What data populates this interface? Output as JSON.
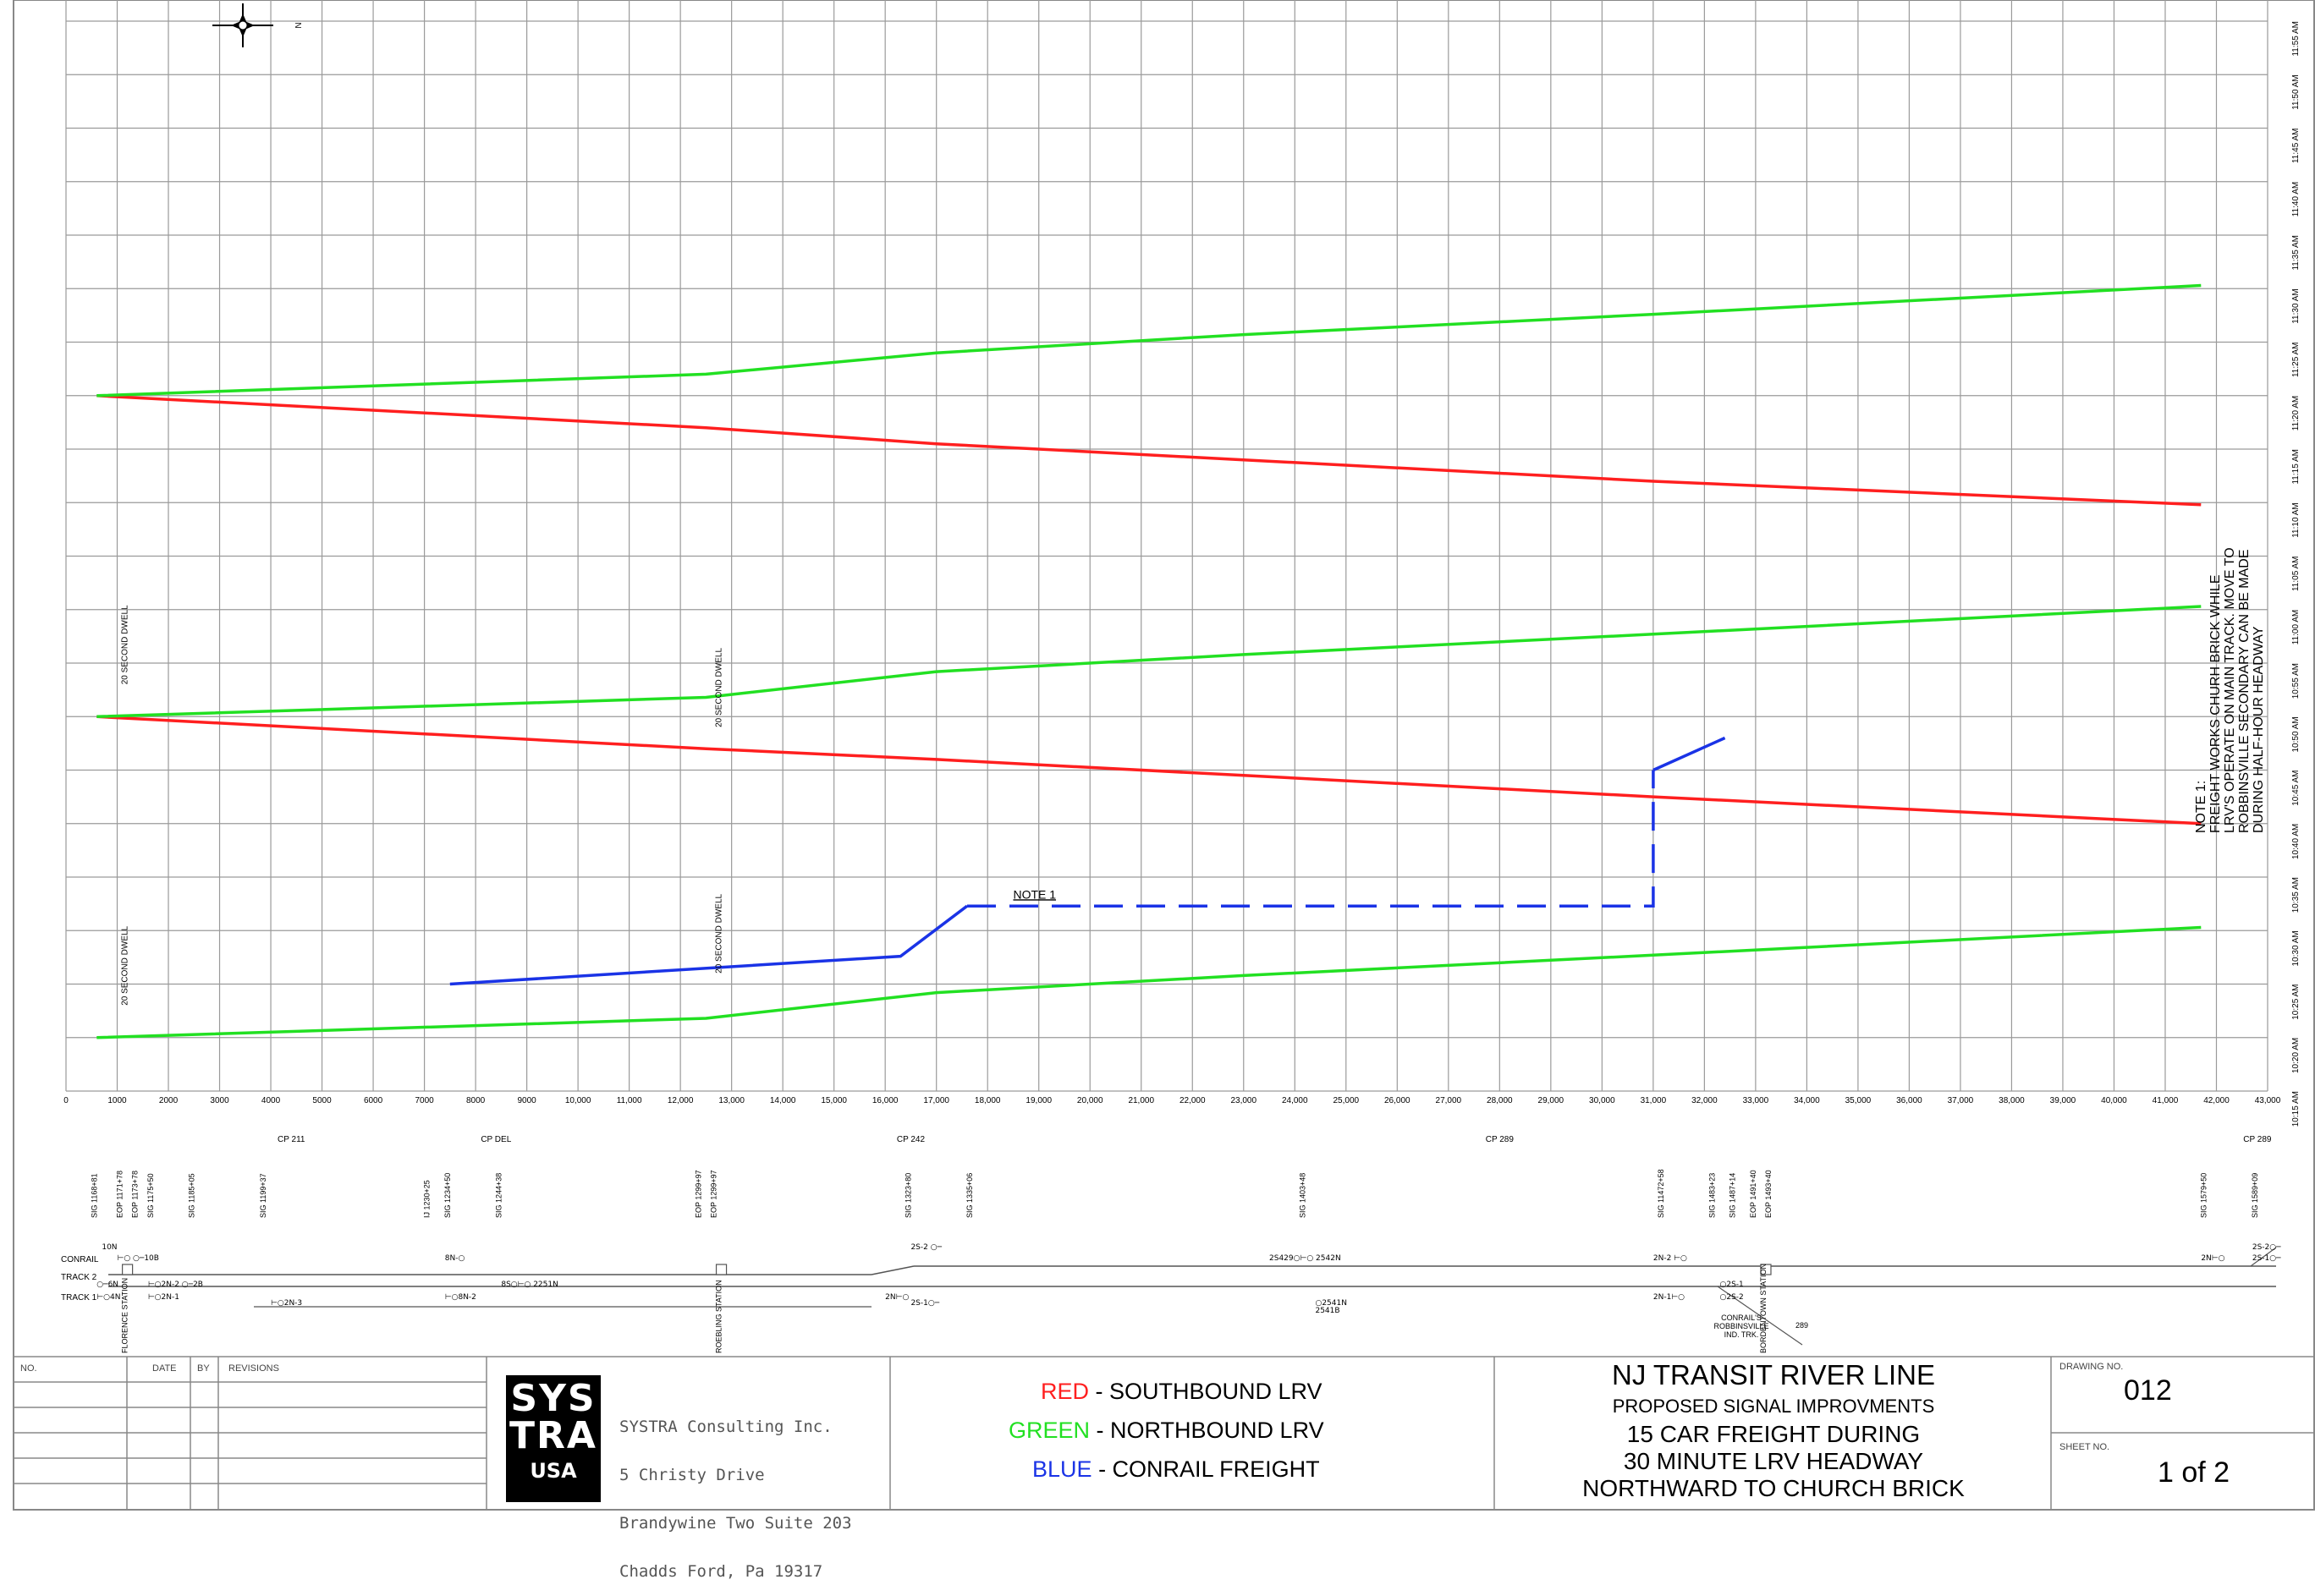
{
  "chart_data": {
    "type": "line",
    "title": "",
    "x_ticks": [
      "0",
      "1000",
      "2000",
      "3000",
      "4000",
      "5000",
      "6000",
      "7000",
      "8000",
      "9000",
      "10,000",
      "11,000",
      "12,000",
      "13,000",
      "14,000",
      "15,000",
      "16,000",
      "17,000",
      "18,000",
      "19,000",
      "20,000",
      "21,000",
      "22,000",
      "23,000",
      "24,000",
      "25,000",
      "26,000",
      "27,000",
      "28,000",
      "29,000",
      "30,000",
      "31,000",
      "32,000",
      "33,000",
      "34,000",
      "35,000",
      "36,000",
      "37,000",
      "38,000",
      "39,000",
      "40,000",
      "41,000",
      "42,000",
      "43,000"
    ],
    "y_ticks": [
      "10:15 AM",
      "10:20 AM",
      "10:25 AM",
      "10:30 AM",
      "10:35 AM",
      "10:40 AM",
      "10:45 AM",
      "10:50 AM",
      "10:55 AM",
      "11:00 AM",
      "11:05 AM",
      "11:10 AM",
      "11:15 AM",
      "11:20 AM",
      "11:25 AM",
      "11:30 AM",
      "11:35 AM",
      "11:40 AM",
      "11:45 AM",
      "11:50 AM",
      "11:55 AM"
    ],
    "xlim": [
      0,
      43000
    ],
    "y_minutes_range": [
      0,
      100
    ],
    "series": [
      {
        "name": "SOUTHBOUND LRV",
        "color": "#ff1f1f",
        "points": [
          [
            600,
            65
          ],
          [
            12500,
            62
          ],
          [
            17000,
            60.5
          ],
          [
            23000,
            59
          ],
          [
            31000,
            57
          ],
          [
            41700,
            54.8
          ]
        ]
      },
      {
        "name": "SOUTHBOUND LRV",
        "color": "#ff1f1f",
        "points": [
          [
            600,
            35
          ],
          [
            12500,
            32
          ],
          [
            17000,
            31
          ],
          [
            23000,
            29.5
          ],
          [
            31000,
            27.5
          ],
          [
            41700,
            25
          ]
        ]
      },
      {
        "name": "NORTHBOUND LRV",
        "color": "#22e022",
        "points": [
          [
            600,
            65
          ],
          [
            12500,
            67
          ],
          [
            17000,
            69
          ],
          [
            23000,
            70.7
          ],
          [
            31000,
            72.6
          ],
          [
            41700,
            75.3
          ]
        ]
      },
      {
        "name": "NORTHBOUND LRV",
        "color": "#22e022",
        "points": [
          [
            600,
            35
          ],
          [
            12500,
            36.8
          ],
          [
            17000,
            39.2
          ],
          [
            23000,
            40.8
          ],
          [
            31000,
            42.7
          ],
          [
            41700,
            45.3
          ]
        ]
      },
      {
        "name": "NORTHBOUND LRV",
        "color": "#22e022",
        "points": [
          [
            600,
            5
          ],
          [
            12500,
            6.8
          ],
          [
            17000,
            9.2
          ],
          [
            23000,
            10.8
          ],
          [
            31000,
            12.7
          ],
          [
            41700,
            15.3
          ]
        ]
      },
      {
        "name": "CONRAIL FREIGHT",
        "color": "#1a33e6",
        "points": [
          [
            7500,
            10
          ],
          [
            16300,
            12.6
          ],
          [
            17600,
            17.3
          ]
        ]
      },
      {
        "name": "CONRAIL FREIGHT",
        "color": "#1a33e6",
        "dashed": true,
        "points": [
          [
            17600,
            17.3
          ],
          [
            31000,
            17.3
          ],
          [
            31000,
            30
          ]
        ]
      },
      {
        "name": "CONRAIL FREIGHT",
        "color": "#1a33e6",
        "points": [
          [
            31000,
            30
          ],
          [
            32400,
            33
          ]
        ]
      }
    ],
    "annotations": [
      {
        "text": "20 SECOND DWELL",
        "x": 1200,
        "y": 38
      },
      {
        "text": "20 SECOND DWELL",
        "x": 1200,
        "y": 8
      },
      {
        "text": "20 SECOND DWELL",
        "x": 12800,
        "y": 34
      },
      {
        "text": "20 SECOND DWELL",
        "x": 12800,
        "y": 11
      },
      {
        "text": "NOTE 1",
        "x": 18500,
        "y": 18
      }
    ],
    "note": [
      "NOTE 1:",
      "FREIGHT WORKS CHURH BRICK WHILE",
      "LRV'S OPERATE ON MAIN TRACK. MOVE TO",
      "ROBBINSVILLE SECONDARY CAN BE MADE",
      "DURING HALF-HOUR HEADWAY"
    ],
    "compass_label": "N"
  },
  "track_diagram": {
    "control_points": [
      {
        "label": "CP 211",
        "x": 4400
      },
      {
        "label": "CP DEL",
        "x": 8400
      },
      {
        "label": "CP 242",
        "x": 16500
      },
      {
        "label": "CP 289",
        "x": 28000
      },
      {
        "label": "CP 289",
        "x": 42800
      }
    ],
    "signals": [
      {
        "label": "SIG 1168+81",
        "x": 600
      },
      {
        "label": "EOP 1171+78",
        "x": 1100
      },
      {
        "label": "EOP 1173+78",
        "x": 1400
      },
      {
        "label": "SIG 1175+50",
        "x": 1700
      },
      {
        "label": "SIG 1185+05",
        "x": 2500
      },
      {
        "label": "SIG 1199+37",
        "x": 3900
      },
      {
        "label": "IJ 1230+25",
        "x": 7100
      },
      {
        "label": "SIG 1234+50",
        "x": 7500
      },
      {
        "label": "SIG 1244+38",
        "x": 8500
      },
      {
        "label": "EOP 1299+97",
        "x": 12400
      },
      {
        "label": "EOP 1299+97",
        "x": 12700
      },
      {
        "label": "SIG 1323+80",
        "x": 16500
      },
      {
        "label": "SIG 1335+06",
        "x": 17700
      },
      {
        "label": "SIG 1403+48",
        "x": 24200
      },
      {
        "label": "SIG 11472+58",
        "x": 31200
      },
      {
        "label": "SIG 1483+23",
        "x": 32200
      },
      {
        "label": "SIG 1487+14",
        "x": 32600
      },
      {
        "label": "EOP 1491+40",
        "x": 33000
      },
      {
        "label": "EOP 1493+40",
        "x": 33300
      },
      {
        "label": "SIG 1579+50",
        "x": 41800
      },
      {
        "label": "SIG 1589+09",
        "x": 42800
      }
    ],
    "track_names": [
      "CONRAIL",
      "TRACK 2",
      "TRACK 1"
    ],
    "labels": [
      {
        "text": "10N",
        "x": 700,
        "row": "top"
      },
      {
        "text": "⊢○ ○─10B",
        "x": 1000,
        "row": "conrail"
      },
      {
        "text": "○─6N",
        "x": 600,
        "row": "t2"
      },
      {
        "text": "⊢○2N-2 ○─2B",
        "x": 1600,
        "row": "t2"
      },
      {
        "text": "⊢○4N",
        "x": 600,
        "row": "t1"
      },
      {
        "text": "⊢○2N-1",
        "x": 1600,
        "row": "t1"
      },
      {
        "text": "⊢○2N-3",
        "x": 4000,
        "row": "below"
      },
      {
        "text": "8N-○",
        "x": 7400,
        "row": "conrail"
      },
      {
        "text": "⊢○8N-2",
        "x": 7400,
        "row": "t1"
      },
      {
        "text": "8S○⊢○ 2251N",
        "x": 8500,
        "row": "t2"
      },
      {
        "text": "2S-2 ○─",
        "x": 16500,
        "row": "top"
      },
      {
        "text": "2N⊢○",
        "x": 16000,
        "row": "t1"
      },
      {
        "text": "2S-1○─",
        "x": 16500,
        "row": "below"
      },
      {
        "text": "2S429○⊢○ 2542N",
        "x": 23500,
        "row": "conrail"
      },
      {
        "text": "○2541N",
        "x": 24400,
        "row": "below"
      },
      {
        "text": "2541B",
        "x": 24400,
        "row": "below2"
      },
      {
        "text": "2N-2 ⊢○",
        "x": 31000,
        "row": "conrail"
      },
      {
        "text": "○2S-1",
        "x": 32300,
        "row": "t2"
      },
      {
        "text": "2N-1⊢○",
        "x": 31000,
        "row": "t1"
      },
      {
        "text": "○2S-2",
        "x": 32300,
        "row": "t1"
      },
      {
        "text": "2S-2○─",
        "x": 42700,
        "row": "top"
      },
      {
        "text": "2N⊢○",
        "x": 41700,
        "row": "conrail"
      },
      {
        "text": "2S-1○─",
        "x": 42700,
        "row": "conrail"
      }
    ],
    "stations": [
      {
        "text": "FLORENCE STATION",
        "x": 1200
      },
      {
        "text": "ROEBLING STATION",
        "x": 12800
      },
      {
        "text": "BORDENTOWN STATION",
        "x": 33200
      }
    ],
    "conrail_label": [
      "CONRAIL'S",
      "ROBBINSVILLE",
      "IND. TRK."
    ],
    "conrail_289": "289"
  },
  "title_block": {
    "revisions_header": {
      "no": "NO.",
      "date": "DATE",
      "by": "BY",
      "revisions": "REVISIONS"
    },
    "logo": {
      "line1": "SYS",
      "line2": "TRA",
      "line3": "USA"
    },
    "company": [
      "SYSTRA Consulting Inc.",
      "5 Christy Drive",
      "Brandywine Two Suite 203",
      "Chadds Ford, Pa 19317"
    ],
    "legend": [
      {
        "color_word": "RED",
        "desc": "- SOUTHBOUND LRV",
        "color": "#ff1f1f"
      },
      {
        "color_word": "GREEN",
        "desc": "- NORTHBOUND LRV",
        "color": "#22e022"
      },
      {
        "color_word": "BLUE",
        "desc": "- CONRAIL FREIGHT",
        "color": "#1a33e6"
      }
    ],
    "title_lines": [
      "NJ TRANSIT RIVER LINE",
      "PROPOSED SIGNAL IMPROVMENTS",
      "15 CAR FREIGHT DURING",
      "30 MINUTE LRV HEADWAY",
      "NORTHWARD TO CHURCH BRICK"
    ],
    "drawing_no_label": "DRAWING NO.",
    "drawing_no": "012",
    "sheet_no_label": "SHEET NO.",
    "sheet_no": "1 of 2"
  }
}
